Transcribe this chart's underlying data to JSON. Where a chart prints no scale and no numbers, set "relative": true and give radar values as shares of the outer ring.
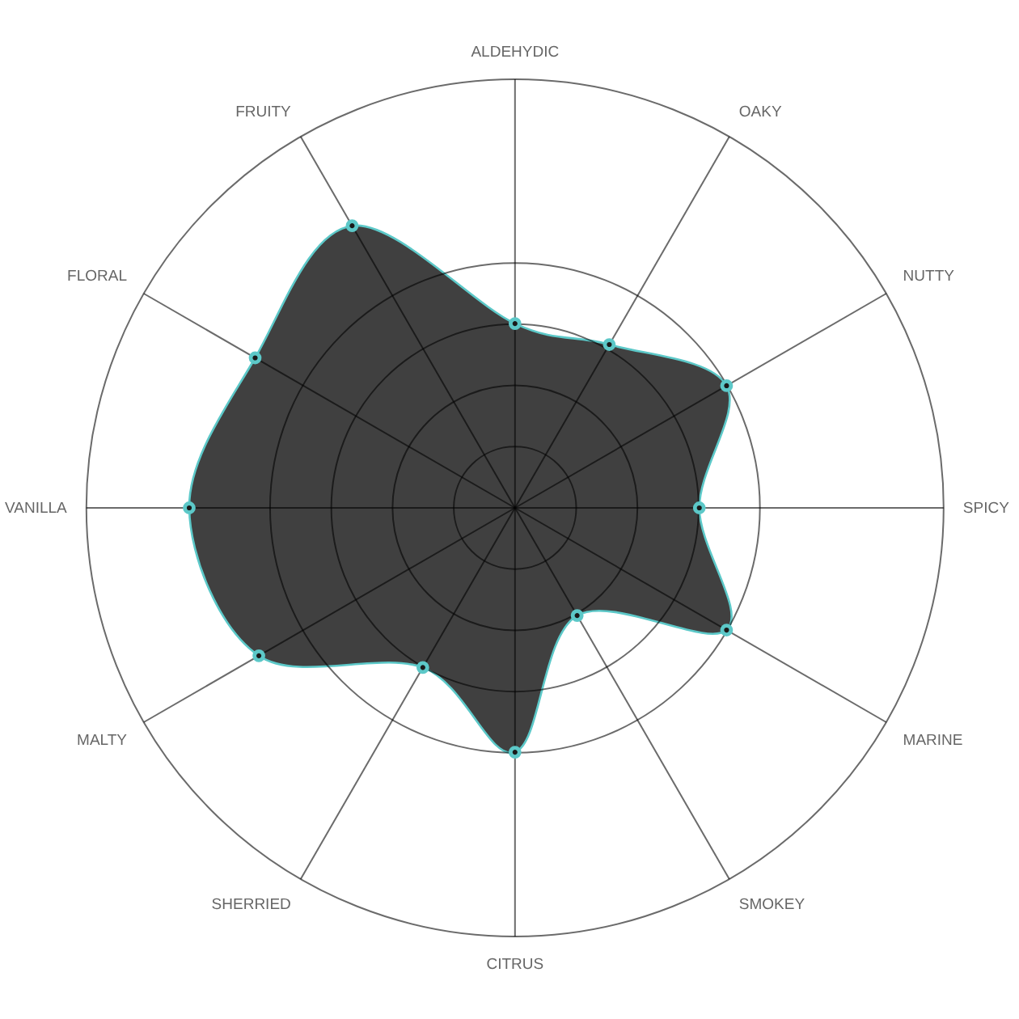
{
  "chart_data": {
    "type": "radar",
    "relative": true,
    "categories": [
      "ALDEHYDIC",
      "OAKY",
      "NUTTY",
      "SPICY",
      "MARINE",
      "SMOKEY",
      "CITRUS",
      "SHERRIED",
      "MALTY",
      "VANILLA",
      "FLORAL",
      "FRUITY"
    ],
    "series": [
      {
        "color": "#404040",
        "values": [
          0.43,
          0.44,
          0.57,
          0.43,
          0.57,
          0.29,
          0.57,
          0.43,
          0.69,
          0.76,
          0.7,
          0.76
        ]
      }
    ],
    "grid": true,
    "marker": "circle"
  }
}
